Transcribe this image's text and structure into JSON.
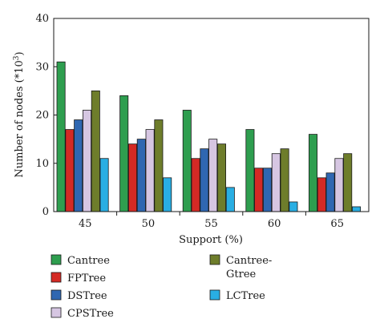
{
  "chart_data": {
    "type": "bar",
    "xlabel": "Support (%)",
    "ylabel": "Number of nodes (*10",
    "ylabel_sup": "3",
    "ylabel_end": ")",
    "ylim": [
      0,
      40
    ],
    "yticks": [
      "0",
      "10",
      "20",
      "30",
      "40"
    ],
    "categories": [
      "45",
      "50",
      "55",
      "60",
      "65"
    ],
    "grid": false,
    "legend_placement": "bottom",
    "series": [
      {
        "name": "Cantree",
        "color": "#2e9e4f",
        "values": [
          31,
          24,
          21,
          17,
          16
        ]
      },
      {
        "name": "FPTree",
        "color": "#d42a25",
        "values": [
          17,
          14,
          11,
          9,
          7
        ]
      },
      {
        "name": "DSTree",
        "color": "#2f67b1",
        "values": [
          19,
          15,
          13,
          9,
          8
        ]
      },
      {
        "name": "CPSTree",
        "color": "#d6c6e2",
        "values": [
          21,
          17,
          15,
          12,
          11
        ]
      },
      {
        "name": "Cantree-Gtree",
        "legend_lines": [
          "Cantree-",
          "Gtree"
        ],
        "color": "#6e7d2b",
        "values": [
          25,
          19,
          14,
          13,
          12
        ]
      },
      {
        "name": "LCTree",
        "color": "#29aee3",
        "values": [
          11,
          7,
          5,
          2,
          1
        ]
      }
    ]
  }
}
